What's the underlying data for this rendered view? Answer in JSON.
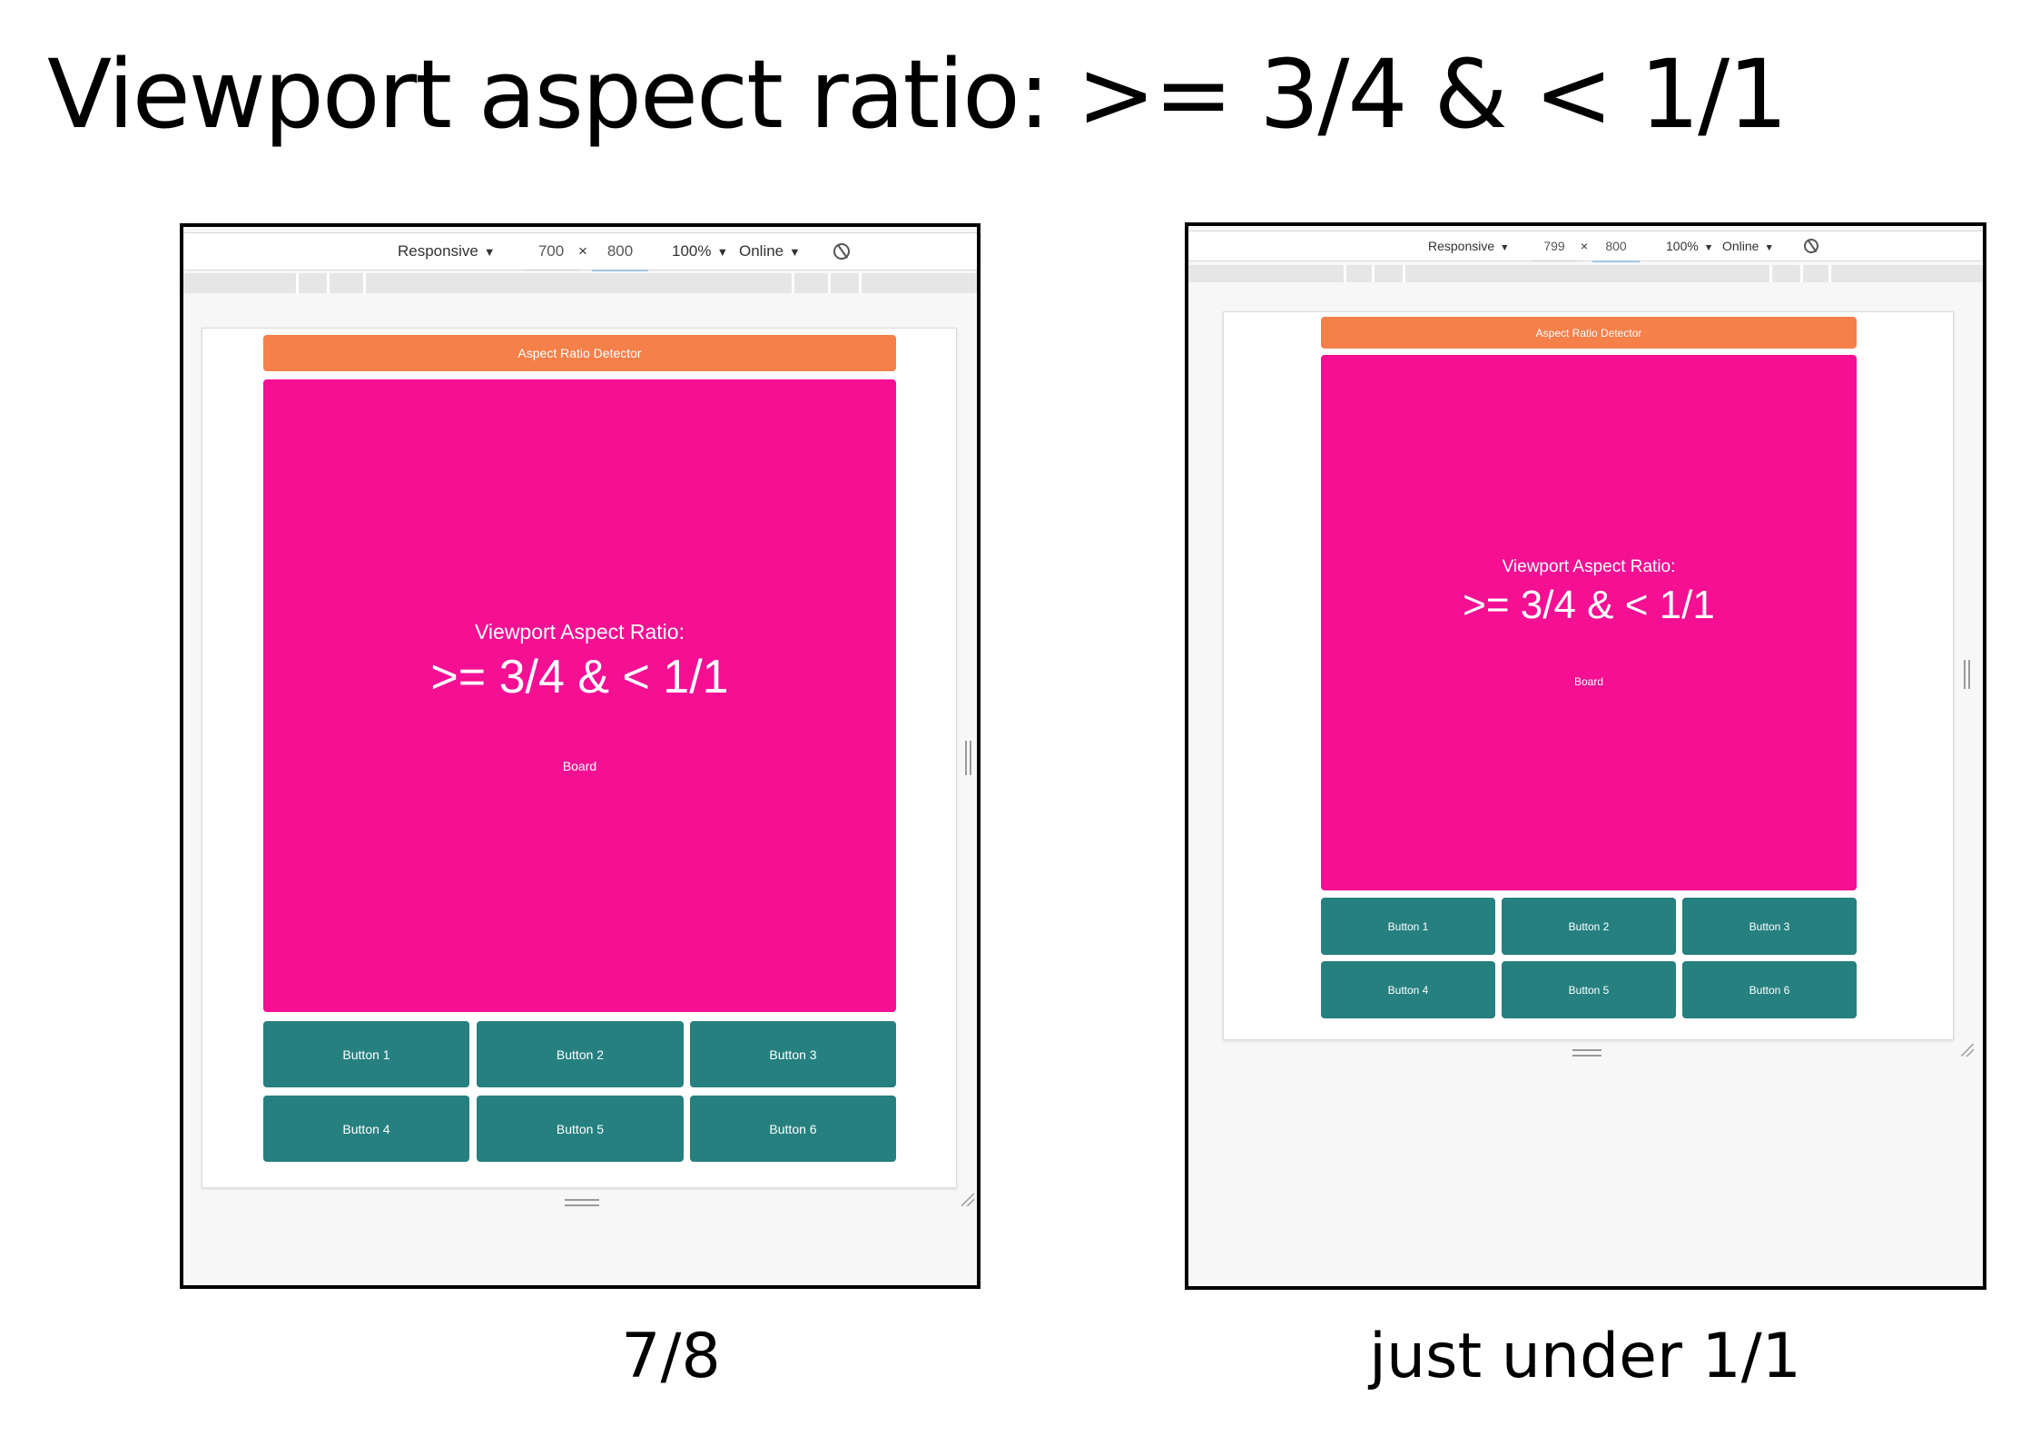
{
  "title": "Viewport aspect ratio: >= 3/4 & < 1/1",
  "colors": {
    "header": "#f5804a",
    "board": "#f40f93",
    "button": "#268080"
  },
  "devtools_toolbar": {
    "device": "Responsive",
    "zoom": "100%",
    "network": "Online",
    "dimension_separator": "×",
    "dropdown_arrow": "▼",
    "rotate_icon": "rotate-icon"
  },
  "app": {
    "header_title": "Aspect Ratio Detector",
    "ratio_heading": "Viewport Aspect Ratio:",
    "ratio_value": ">= 3/4 & < 1/1",
    "board_label": "Board",
    "buttons": [
      "Button 1",
      "Button 2",
      "Button 3",
      "Button 4",
      "Button 5",
      "Button 6"
    ]
  },
  "panels": [
    {
      "width": "700",
      "height": "800",
      "caption": "7/8"
    },
    {
      "width": "799",
      "height": "800",
      "caption": "just under 1/1"
    }
  ]
}
